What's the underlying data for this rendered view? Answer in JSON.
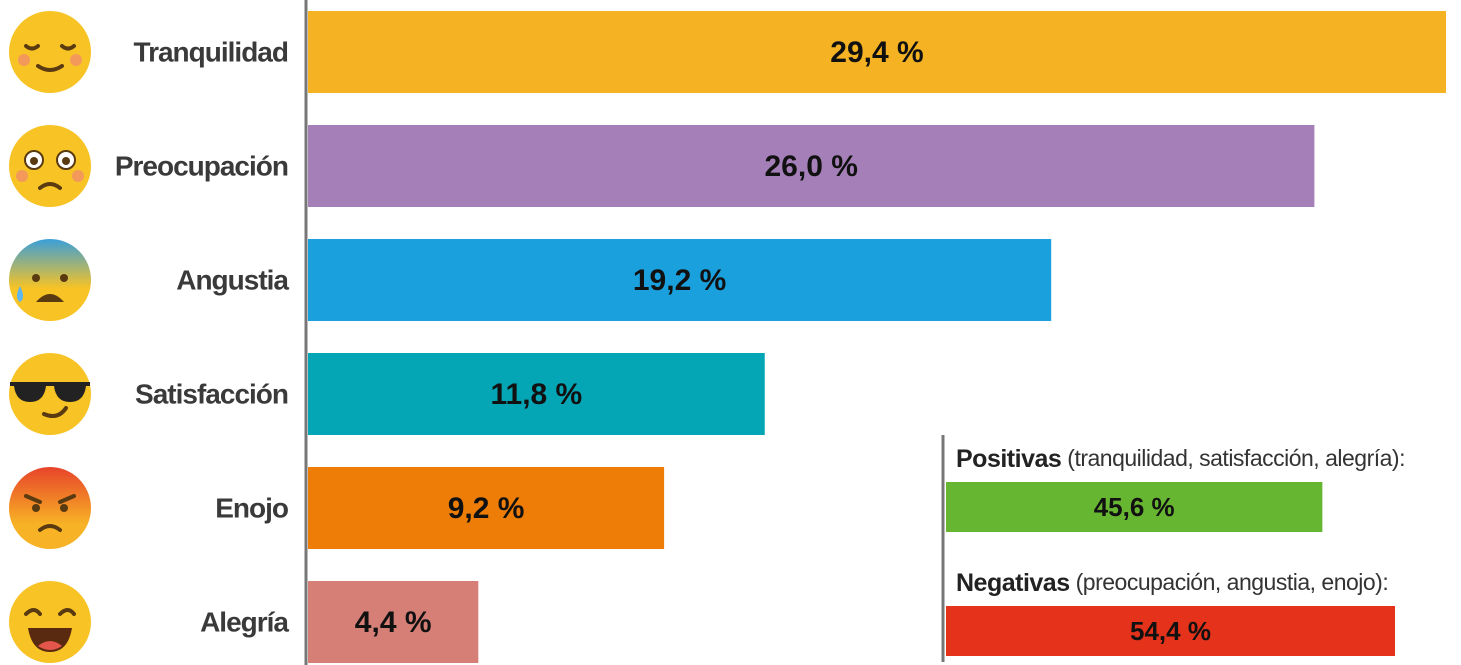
{
  "chart_data": [
    {
      "type": "barh",
      "categories": [
        "Tranquilidad",
        "Preocupación",
        "Angustia",
        "Satisfacción",
        "Enojo",
        "Alegría"
      ],
      "values": [
        29.4,
        26.0,
        19.2,
        11.8,
        9.2,
        4.4
      ],
      "value_labels": [
        "29,4 %",
        "26,0 %",
        "19,2 %",
        "11,8 %",
        "9,2 %",
        "4,4 %"
      ],
      "colors": [
        "#f5b324",
        "#a57fb8",
        "#1aa0dc",
        "#04a6b5",
        "#ee7d07",
        "#d67f77"
      ]
    },
    {
      "type": "barh",
      "categories": [
        "Positivas",
        "Negativas"
      ],
      "descriptions": [
        "(tranquilidad, satisfacción, alegría):",
        "(preocupación, angustia, enojo):"
      ],
      "values": [
        45.6,
        54.4
      ],
      "value_labels": [
        "45,6 %",
        "54,4 %"
      ],
      "colors": [
        "#67b631",
        "#e4321b"
      ]
    }
  ]
}
